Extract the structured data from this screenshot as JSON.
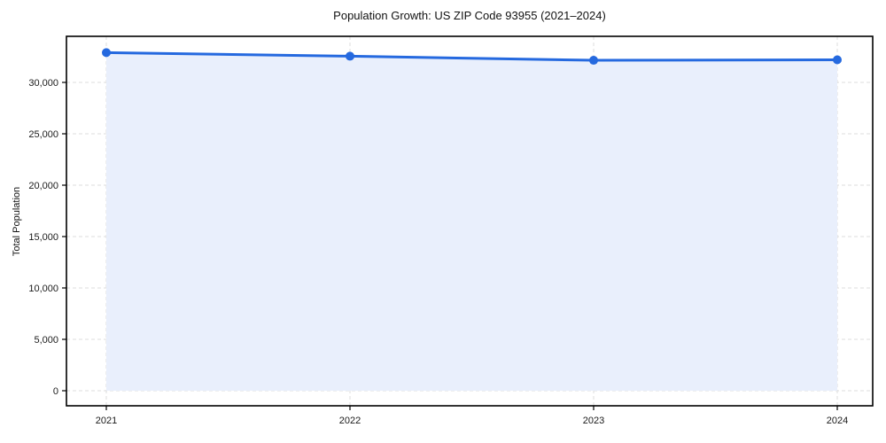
{
  "chart_data": {
    "type": "area",
    "title": "Population Growth: US ZIP Code 93955 (2021–2024)",
    "xlabel": "",
    "ylabel": "Total Population",
    "categories": [
      "2021",
      "2022",
      "2023",
      "2024"
    ],
    "series": [
      {
        "name": "Total Population",
        "values": [
          32900,
          32550,
          32150,
          32200
        ]
      }
    ],
    "yticks": {
      "values": [
        0,
        5000,
        10000,
        15000,
        20000,
        25000,
        30000
      ],
      "labels": [
        "0",
        "5,000",
        "10,000",
        "15,000",
        "20,000",
        "25,000",
        "30,000"
      ]
    },
    "ylim": [
      -1500,
      34500
    ],
    "grid": "dashed-both-axes",
    "legend": "none",
    "marker": "circle",
    "colors": {
      "line": "#2569df",
      "marker": "#2569df",
      "area_fill": "#e9effc",
      "grid": "#dcdcdc",
      "spine": "#000000",
      "text": "#1a1a1a",
      "background": "#ffffff"
    }
  }
}
